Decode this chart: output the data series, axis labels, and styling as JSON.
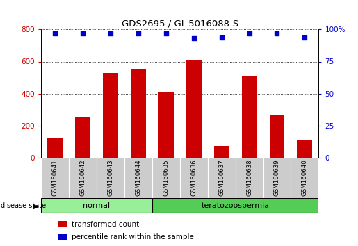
{
  "title": "GDS2695 / GI_5016088-S",
  "samples": [
    "GSM160641",
    "GSM160642",
    "GSM160643",
    "GSM160644",
    "GSM160635",
    "GSM160636",
    "GSM160637",
    "GSM160638",
    "GSM160639",
    "GSM160640"
  ],
  "transformed_counts": [
    120,
    250,
    530,
    555,
    405,
    605,
    70,
    510,
    265,
    110
  ],
  "percentile_ranks": [
    97,
    97,
    97,
    97,
    97,
    93,
    94,
    97,
    97,
    94
  ],
  "groups": [
    {
      "label": "normal",
      "start": 0,
      "end": 3
    },
    {
      "label": "teratozoospermia",
      "start": 4,
      "end": 9
    }
  ],
  "bar_color": "#cc0000",
  "dot_color": "#0000cc",
  "ylim_left": [
    0,
    800
  ],
  "ylim_right": [
    0,
    100
  ],
  "yticks_left": [
    0,
    200,
    400,
    600,
    800
  ],
  "yticks_right": [
    0,
    25,
    50,
    75,
    100
  ],
  "bg_xtick": "#cccccc",
  "bg_group_normal": "#99ee99",
  "bg_group_terato": "#55cc55",
  "disease_state_label": "disease state",
  "legend_items": [
    {
      "label": "transformed count",
      "color": "#cc0000"
    },
    {
      "label": "percentile rank within the sample",
      "color": "#0000cc"
    }
  ],
  "bar_width": 0.55
}
